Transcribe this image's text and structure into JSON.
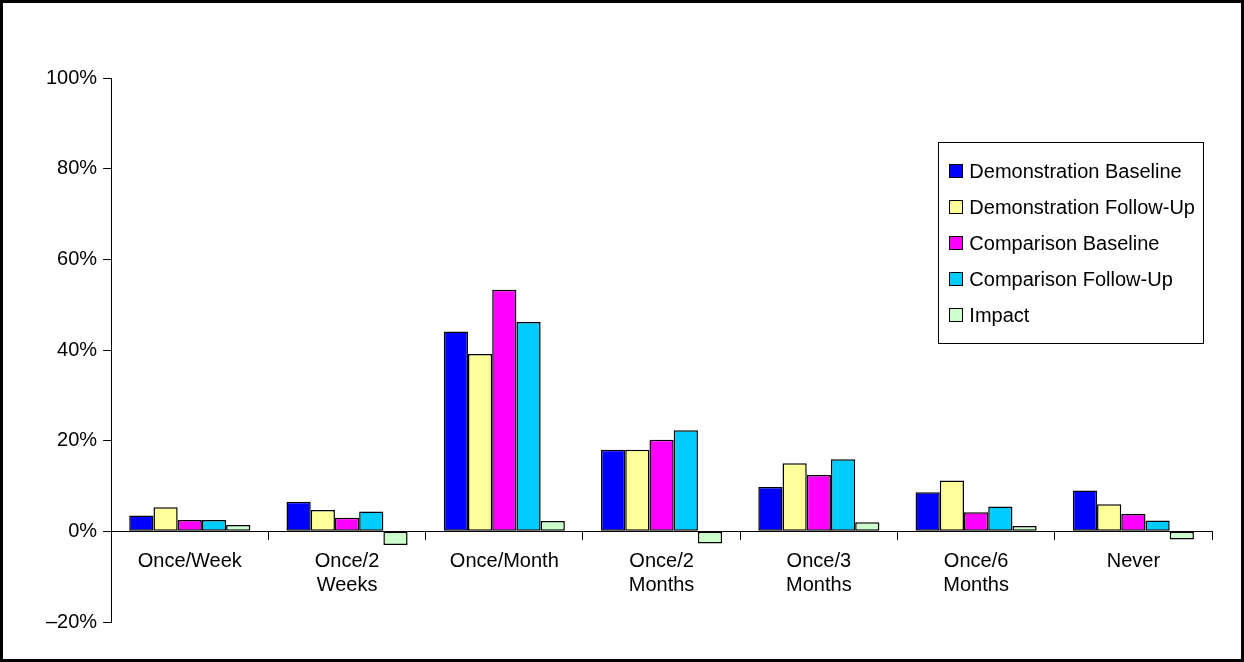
{
  "chart_data": {
    "type": "bar",
    "categories": [
      "Once/Week",
      "Once/2 Weeks",
      "Once/Month",
      "Once/2 Months",
      "Once/3 Months",
      "Once/6 Months",
      "Never"
    ],
    "series": [
      {
        "name": "Demonstration Baseline",
        "color": "#0000ff",
        "values": [
          3.5,
          6.5,
          44.1,
          18.0,
          9.8,
          8.6,
          9.0
        ]
      },
      {
        "name": "Demonstration Follow-Up",
        "color": "#ffff99",
        "values": [
          5.3,
          4.7,
          39.1,
          18.0,
          15.0,
          11.2,
          6.0
        ]
      },
      {
        "name": "Comparison Baseline",
        "color": "#ff00ff",
        "values": [
          2.5,
          3.0,
          53.3,
          20.2,
          12.4,
          4.2,
          3.8
        ]
      },
      {
        "name": "Comparison Follow-Up",
        "color": "#00ccff",
        "values": [
          2.5,
          4.4,
          46.2,
          22.3,
          15.9,
          5.5,
          2.4
        ]
      },
      {
        "name": "Impact",
        "color": "#ccffcc",
        "values": [
          1.4,
          -3.0,
          2.3,
          -2.7,
          2.0,
          1.2,
          -1.8
        ]
      }
    ],
    "ylim": [
      -20,
      100
    ],
    "yticks": [
      {
        "value": -20,
        "label": "–20%"
      },
      {
        "value": 0,
        "label": "0%"
      },
      {
        "value": 20,
        "label": "20%"
      },
      {
        "value": 40,
        "label": "40%"
      },
      {
        "value": 60,
        "label": "60%"
      },
      {
        "value": 80,
        "label": "80%"
      },
      {
        "value": 100,
        "label": "100%"
      }
    ],
    "grid": false,
    "legend": "top right"
  }
}
